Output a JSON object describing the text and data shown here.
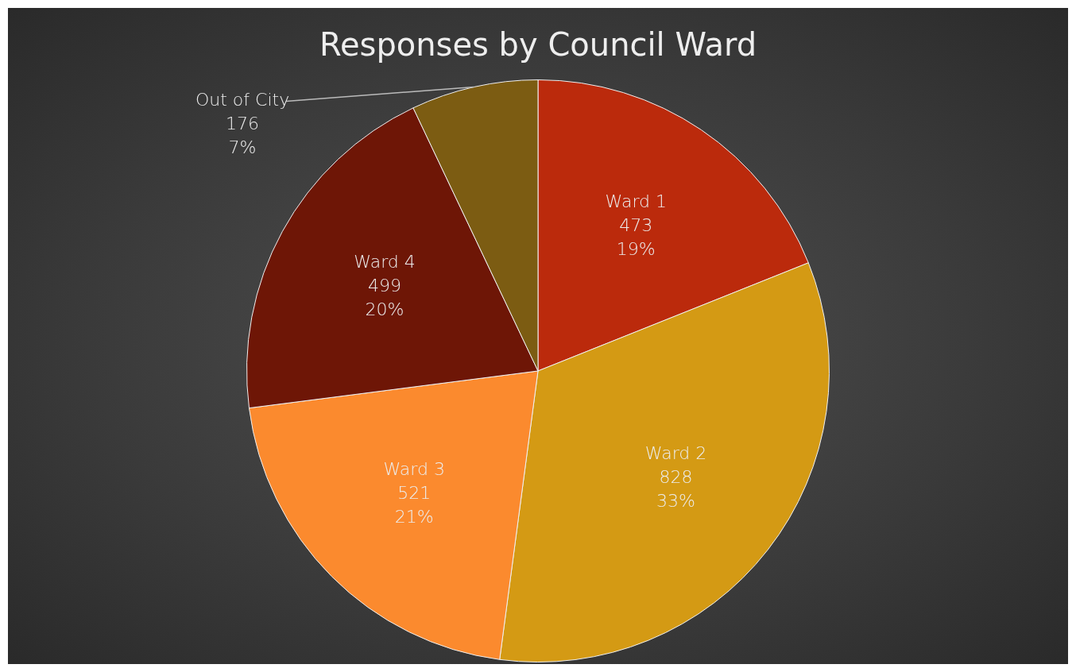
{
  "chart_data": {
    "type": "pie",
    "title": "Responses by Council Ward",
    "categories": [
      "Ward 1",
      "Ward 2",
      "Ward 3",
      "Ward 4",
      "Out of City"
    ],
    "values": [
      473,
      828,
      521,
      499,
      176
    ],
    "colors": [
      "#bb2a0c",
      "#d49a14",
      "#fb8a2e",
      "#6e1606",
      "#7c5c12"
    ],
    "value_labels": [
      "473\n19%",
      "828\n33%",
      "521\n21%",
      "499\n20%",
      "176\n7%"
    ],
    "legend": false
  }
}
